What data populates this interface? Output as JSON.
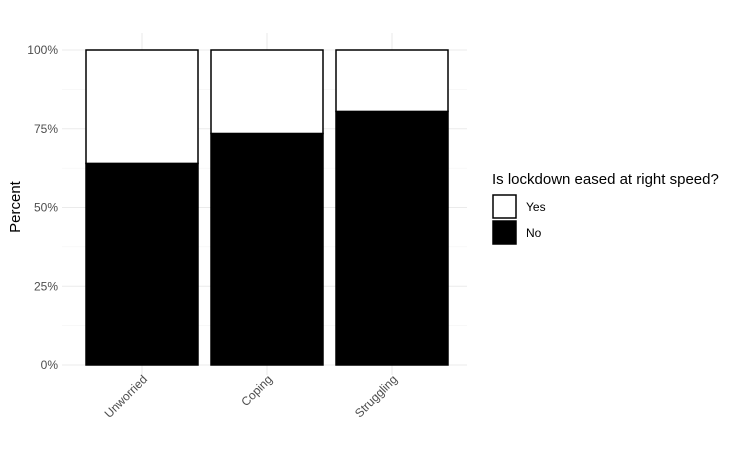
{
  "chart_data": {
    "type": "bar",
    "stacked": true,
    "orientation": "vertical",
    "categories": [
      "Unworried",
      "Coping",
      "Struggling"
    ],
    "series": [
      {
        "name": "No",
        "values": [
          64,
          73.5,
          80.5
        ],
        "color": "#000000"
      },
      {
        "name": "Yes",
        "values": [
          36,
          26.5,
          19.5
        ],
        "color": "#ffffff"
      }
    ],
    "ylabel": "Percent",
    "ylim": [
      0,
      100
    ],
    "yticks": [
      0,
      25,
      50,
      75,
      100
    ],
    "ytick_labels": [
      "0%",
      "25%",
      "50%",
      "75%",
      "100%"
    ],
    "grid": true,
    "legend": {
      "title": "Is lockdown eased at right speed?",
      "position": "right",
      "entries": [
        {
          "label": "Yes",
          "color": "#ffffff"
        },
        {
          "label": "No",
          "color": "#000000"
        }
      ]
    }
  }
}
